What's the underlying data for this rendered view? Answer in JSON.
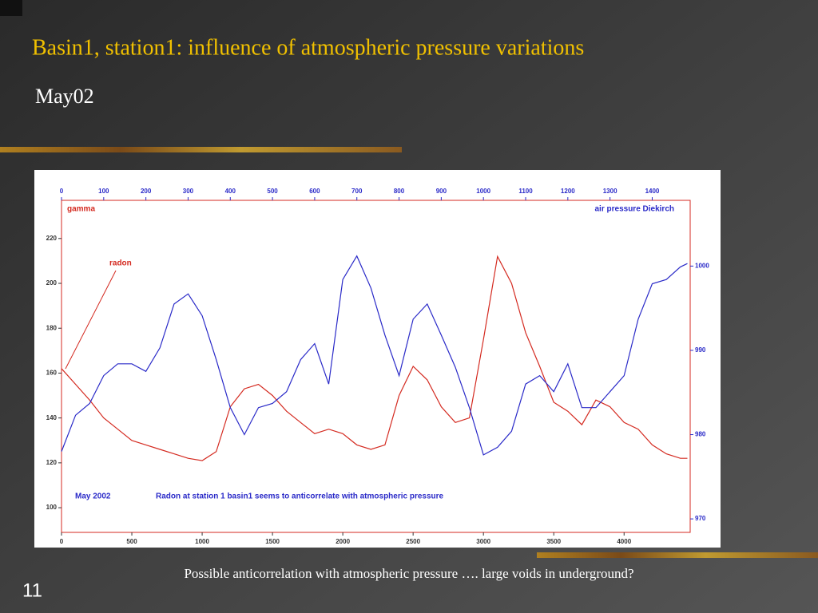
{
  "slide": {
    "title": "Basin1, station1: influence of atmospheric pressure variations",
    "subtitle": "May02",
    "caption": "Possible anticorrelation with atmospheric pressure …. large voids in underground?",
    "number": "11"
  },
  "chart_data": {
    "type": "line",
    "ylabel": "gamma",
    "y2label": "air pressure Diekirch",
    "annotations": [
      "radon",
      "May 2002",
      "Radon at station 1 basin1 seems to anticorrelate with atmospheric pressure"
    ],
    "x": [
      0,
      100,
      200,
      300,
      400,
      500,
      600,
      700,
      800,
      900,
      1000,
      1100,
      1200,
      1300,
      1400,
      1500,
      1600,
      1700,
      1800,
      1900,
      2000,
      2100,
      2200,
      2300,
      2400,
      2500,
      2600,
      2700,
      2800,
      2900,
      3000,
      3100,
      3200,
      3300,
      3400,
      3500,
      3600,
      3700,
      3800,
      3900,
      4000,
      4100,
      4200,
      4300,
      4400,
      4450
    ],
    "series": [
      {
        "name": "radon",
        "color": "#d42a20",
        "values": [
          162,
          155,
          148,
          140,
          135,
          130,
          128,
          126,
          124,
          122,
          121,
          125,
          145,
          153,
          155,
          150,
          143,
          138,
          133,
          135,
          133,
          128,
          126,
          128,
          150,
          163,
          157,
          145,
          138,
          140,
          175,
          212,
          200,
          178,
          163,
          147,
          143,
          137,
          148,
          145,
          138,
          135,
          128,
          124,
          122,
          122
        ]
      },
      {
        "name": "air pressure Diekirch",
        "color": "#2a2ac8",
        "axis": "y2",
        "values": [
          978,
          982.3,
          983.7,
          987,
          988.4,
          988.4,
          987.5,
          990.3,
          995.5,
          996.7,
          994.1,
          988.9,
          983.2,
          980,
          983.2,
          983.7,
          985.1,
          988.9,
          990.8,
          986,
          998.4,
          1001.2,
          997.4,
          991.8,
          987,
          993.7,
          995.5,
          991.8,
          988,
          983.2,
          977.6,
          978.5,
          980.4,
          986,
          987,
          985.1,
          988.4,
          983.2,
          983.2,
          985.1,
          987,
          993.7,
          997.9,
          998.4,
          999.9,
          1000.3
        ]
      }
    ],
    "xlim": [
      0,
      4470
    ],
    "xticks": [
      0,
      500,
      1000,
      1500,
      2000,
      2500,
      3000,
      3500,
      4000
    ],
    "x2lim": [
      0,
      1490
    ],
    "x2ticks": [
      0,
      100,
      200,
      300,
      400,
      500,
      600,
      700,
      800,
      900,
      1000,
      1100,
      1200,
      1300,
      1400
    ],
    "ylim": [
      89,
      237
    ],
    "yticks": [
      100,
      120,
      140,
      160,
      180,
      200,
      220
    ],
    "y2lim": [
      968.4,
      1007.8
    ],
    "y2ticks": [
      970,
      980,
      990,
      1000
    ]
  }
}
